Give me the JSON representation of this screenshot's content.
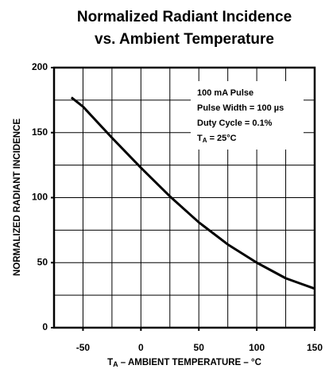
{
  "chart_data": {
    "type": "line",
    "title": [
      "Normalized Radiant Incidence",
      "vs. Ambient Temperature"
    ],
    "y_label": "NORMALIZED RADIANT INCIDENCE",
    "x_label": {
      "main": "T",
      "sub": "A",
      "rest": " – AMBIENT TEMPERATURE – °C"
    },
    "annotation": [
      "100 mA Pulse",
      "Pulse Width = 100 µs",
      "Duty Cycle = 0.1%",
      {
        "main": "T",
        "sub": "A",
        "rest": " = 25°C"
      }
    ],
    "x": [
      -60,
      -50,
      -25,
      0,
      25,
      50,
      75,
      100,
      125,
      150
    ],
    "series": [
      {
        "name": "Normalized Radiant Incidence",
        "color": "#000000",
        "values": [
          177,
          170,
          146,
          123,
          101,
          81,
          64,
          50,
          38,
          30
        ]
      }
    ],
    "xlim": [
      -75,
      150
    ],
    "ylim": [
      0,
      200
    ],
    "xticks": [
      -50,
      0,
      50,
      100,
      150
    ],
    "yticks": [
      0,
      50,
      100,
      150,
      200
    ],
    "x_gridlines": [
      -50,
      -25,
      0,
      25,
      50,
      75,
      100,
      125
    ],
    "y_gridlines": [
      25,
      50,
      75,
      100,
      125,
      150,
      175
    ],
    "grid": true
  }
}
